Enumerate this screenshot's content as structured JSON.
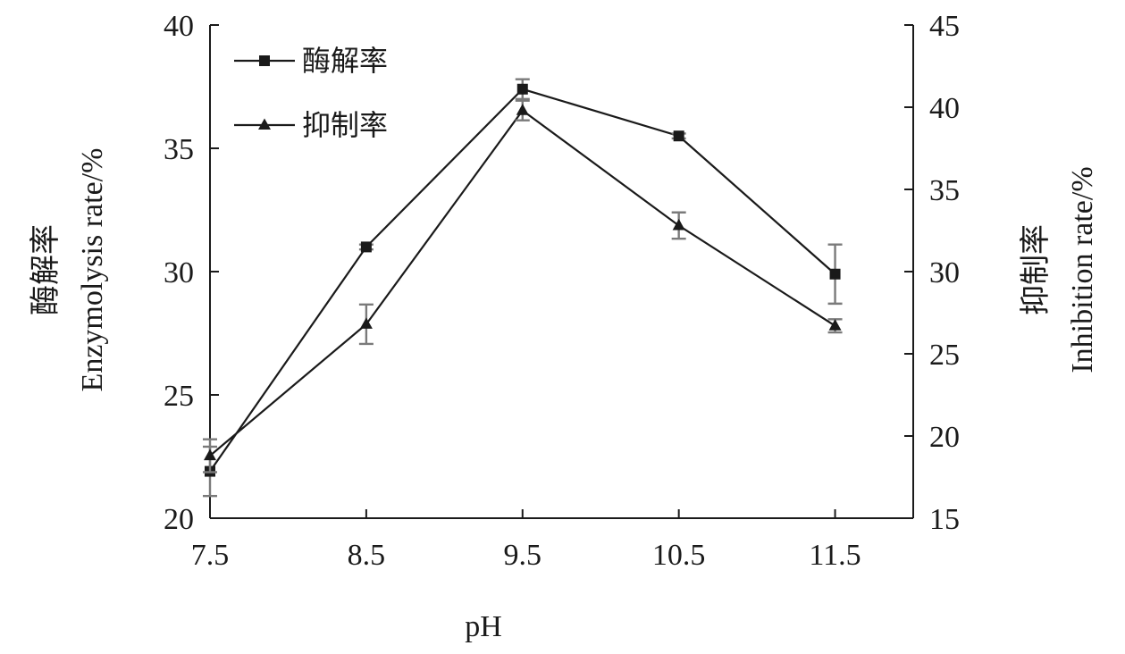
{
  "chart_data": {
    "type": "line",
    "x": [
      7.5,
      8.5,
      9.5,
      10.5,
      11.5
    ],
    "x_tick_labels": [
      "7.5",
      "8.5",
      "9.5",
      "10.5",
      "11.5"
    ],
    "xlabel": "pH",
    "xlim": [
      7.5,
      12.0
    ],
    "left_axis": {
      "label_cn": "酶解率",
      "label_en": "Enzymolysis rate/%",
      "ylim": [
        20,
        40
      ],
      "ticks": [
        "20",
        "25",
        "30",
        "35",
        "40"
      ]
    },
    "right_axis": {
      "label_cn": "抑制率",
      "label_en": "Inhibition rate/%",
      "ylim": [
        15,
        45
      ],
      "ticks": [
        "15",
        "20",
        "25",
        "30",
        "35",
        "40",
        "45"
      ]
    },
    "series": [
      {
        "name": "酶解率",
        "axis": "left",
        "marker": "square",
        "values": [
          21.9,
          31.0,
          37.4,
          35.5,
          29.9
        ],
        "errors": [
          1.0,
          0.1,
          0.4,
          0.1,
          1.2
        ]
      },
      {
        "name": "抑制率",
        "axis": "right",
        "marker": "triangle",
        "values": [
          18.8,
          26.8,
          39.8,
          32.8,
          26.7
        ],
        "errors": [
          1.0,
          1.2,
          0.6,
          0.8,
          0.4
        ]
      }
    ],
    "legend_position": "top-left",
    "grid": false
  }
}
